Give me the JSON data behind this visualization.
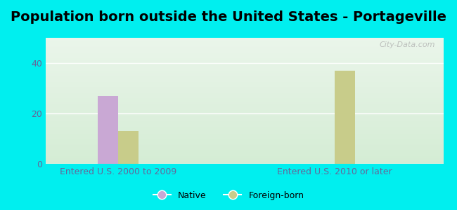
{
  "title": "Population born outside the United States - Portageville",
  "title_fontsize": 14,
  "groups": [
    "Entered U.S. 2000 to 2009",
    "Entered U.S. 2010 or later"
  ],
  "native_values": [
    27,
    0
  ],
  "foreign_values": [
    13,
    37
  ],
  "native_color": "#c9a8d4",
  "foreign_color": "#c8cc8a",
  "bar_width": 0.28,
  "ylim": [
    0,
    50
  ],
  "yticks": [
    0,
    20,
    40
  ],
  "background_outer": "#00efef",
  "background_inner_top": "#eaf5ea",
  "background_inner_bottom": "#d4ecd4",
  "legend_native_label": "Native",
  "legend_foreign_label": "Foreign-born",
  "watermark": "City-Data.com",
  "tick_label_color": "#666699",
  "tick_label_fontsize": 9
}
